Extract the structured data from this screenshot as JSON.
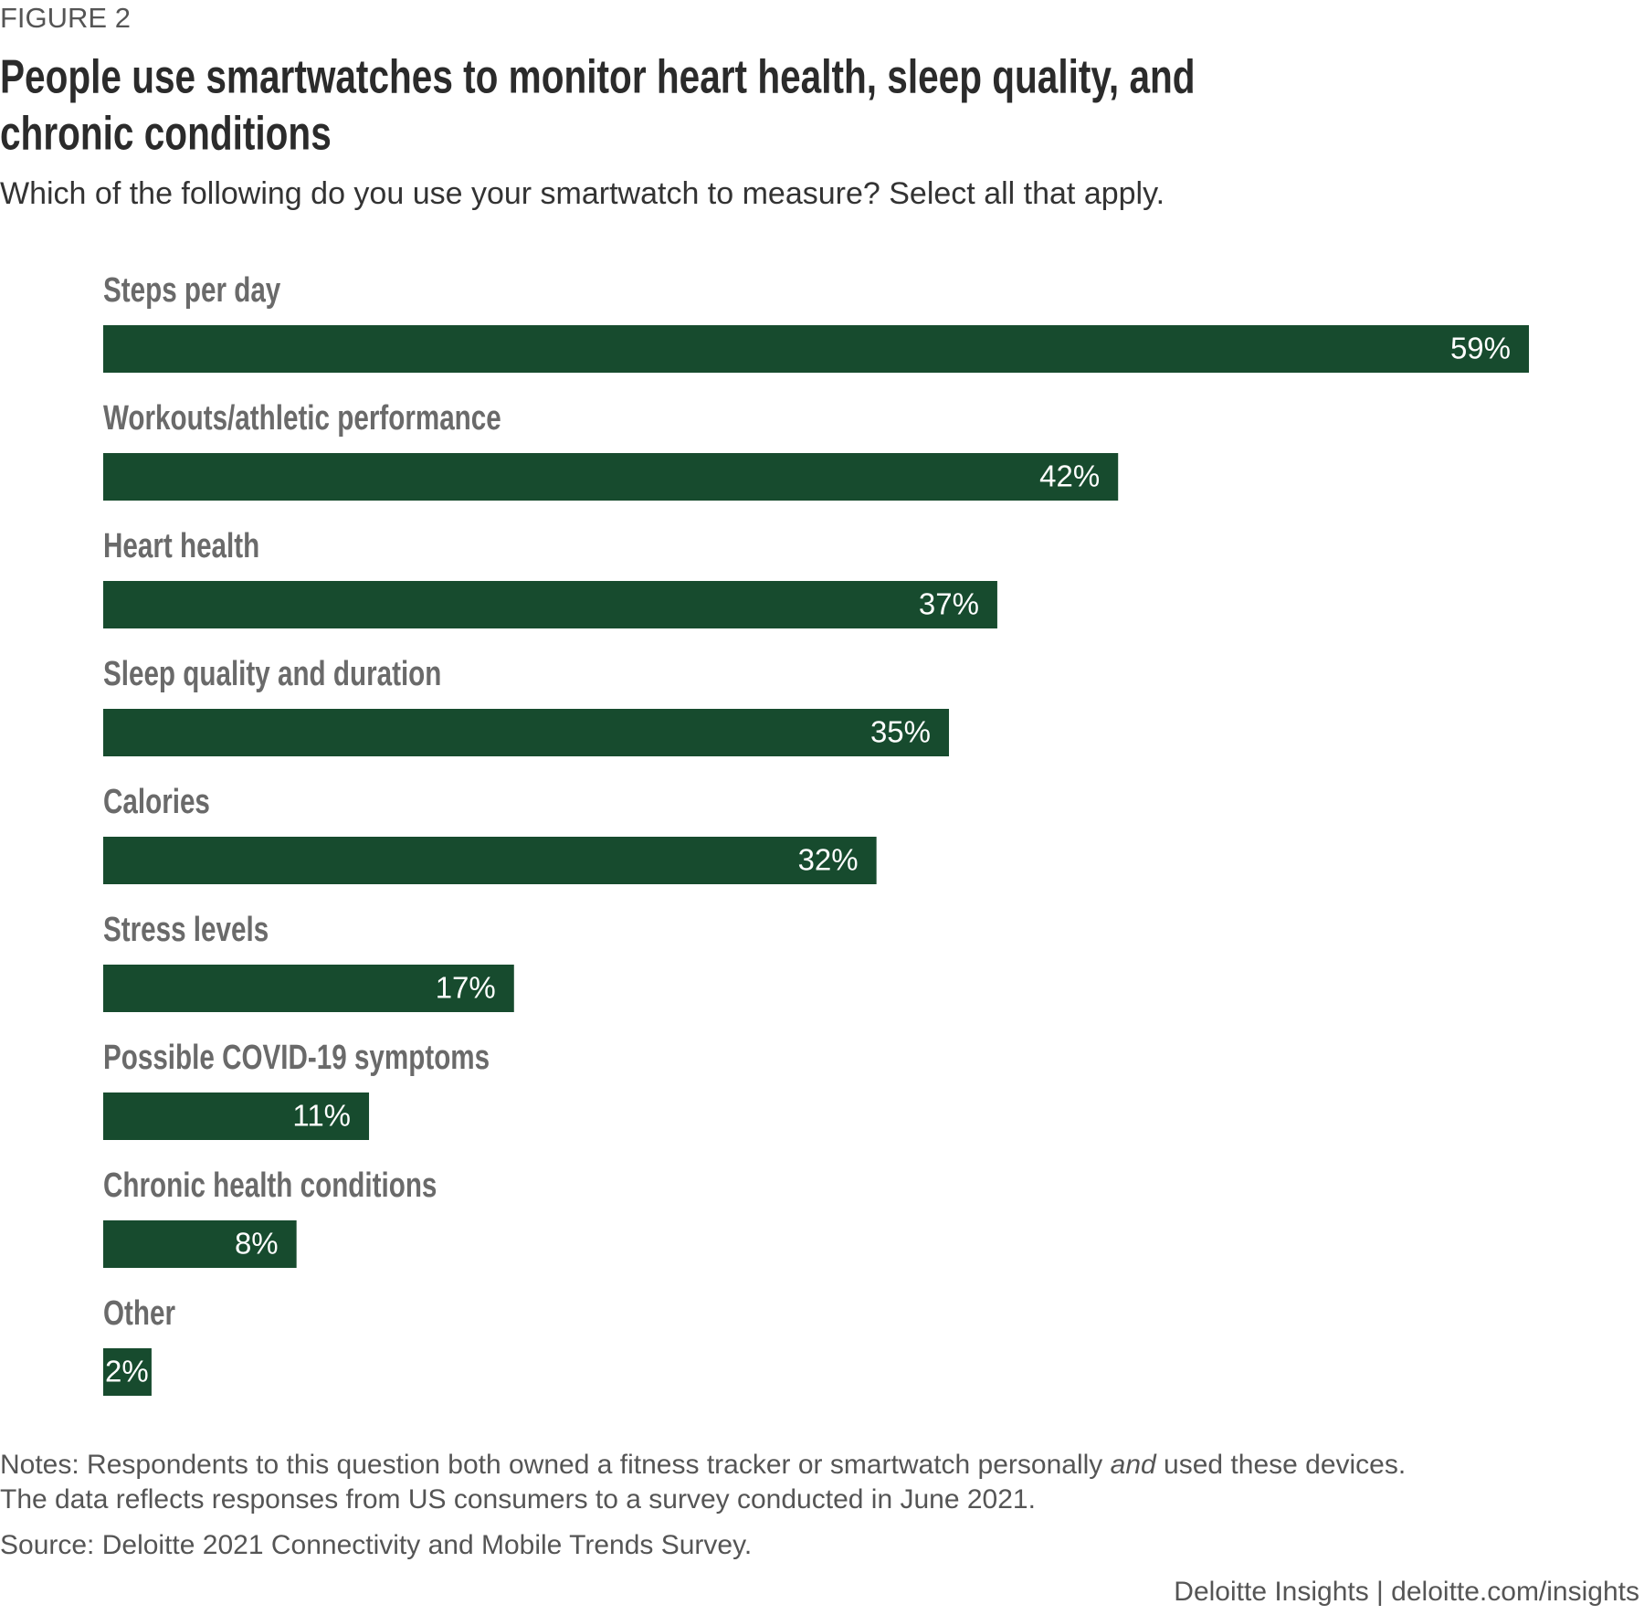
{
  "figure_label": "FIGURE 2",
  "chart_data": {
    "type": "bar",
    "orientation": "horizontal",
    "title": "People use smartwatches to monitor heart health, sleep quality, and chronic conditions",
    "title_lines": [
      "People use smartwatches to monitor heart health, sleep quality, and",
      "chronic conditions"
    ],
    "subtitle": "Which of the following do you use your smartwatch to measure? Select all that apply.",
    "categories": [
      "Steps per day",
      "Workouts/athletic performance",
      "Heart health",
      "Sleep quality and duration",
      "Calories",
      "Stress levels",
      "Possible COVID-19 symptoms",
      "Chronic health conditions",
      "Other"
    ],
    "values": [
      59,
      42,
      37,
      35,
      32,
      17,
      11,
      8,
      2
    ],
    "value_labels": [
      "59%",
      "42%",
      "37%",
      "35%",
      "32%",
      "17%",
      "11%",
      "8%",
      "2%"
    ],
    "color": "#174b2e"
  },
  "notes": {
    "line1": [
      "Notes: Respondents to this question both owned a fitness tracker or smartwatch personally ",
      "and",
      " used these devices."
    ],
    "line2": "The data reflects responses from US consumers to a survey conducted in June 2021.",
    "source": "Source: Deloitte 2021 Connectivity and Mobile Trends Survey."
  },
  "footer": "Deloitte Insights | deloitte.com/insights"
}
